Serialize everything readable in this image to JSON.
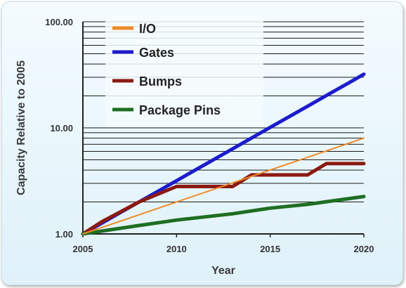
{
  "chart_data": {
    "type": "line",
    "title": "",
    "xlabel": "Year",
    "ylabel": "Capacity Relative to 2005",
    "yscale": "log",
    "xlim": [
      2005,
      2020
    ],
    "ylim": [
      1,
      100
    ],
    "x_ticks": [
      "2005",
      "2010",
      "2015",
      "2020"
    ],
    "y_ticks": [
      "1.00",
      "10.00",
      "100.00"
    ],
    "grid": "horizontal minor log gridlines",
    "legend_position": "top-left",
    "series": [
      {
        "name": "I/O",
        "color": "#f08a2a",
        "x": [
          2005,
          2020
        ],
        "y": [
          1.0,
          8.0
        ]
      },
      {
        "name": "Gates",
        "color": "#1c1ccc",
        "x": [
          2005,
          2006,
          2007,
          2008,
          2009,
          2010,
          2011,
          2012,
          2013,
          2014,
          2015,
          2016,
          2017,
          2018,
          2019,
          2020
        ],
        "y": [
          1.0,
          1.26,
          1.59,
          2.0,
          2.52,
          3.17,
          4.0,
          5.04,
          6.35,
          8.0,
          10.1,
          12.7,
          16.0,
          20.2,
          25.4,
          32.0
        ]
      },
      {
        "name": "Bumps",
        "color": "#8b1a12",
        "x": [
          2005,
          2006,
          2008,
          2010,
          2013,
          2014,
          2017,
          2018,
          2020
        ],
        "y": [
          1.0,
          1.3,
          2.0,
          2.8,
          2.8,
          3.6,
          3.6,
          4.6,
          4.6
        ]
      },
      {
        "name": "Package Pins",
        "color": "#1f6e22",
        "x": [
          2005,
          2008,
          2010,
          2013,
          2015,
          2017,
          2020
        ],
        "y": [
          1.0,
          1.2,
          1.35,
          1.55,
          1.75,
          1.9,
          2.25
        ]
      }
    ]
  }
}
